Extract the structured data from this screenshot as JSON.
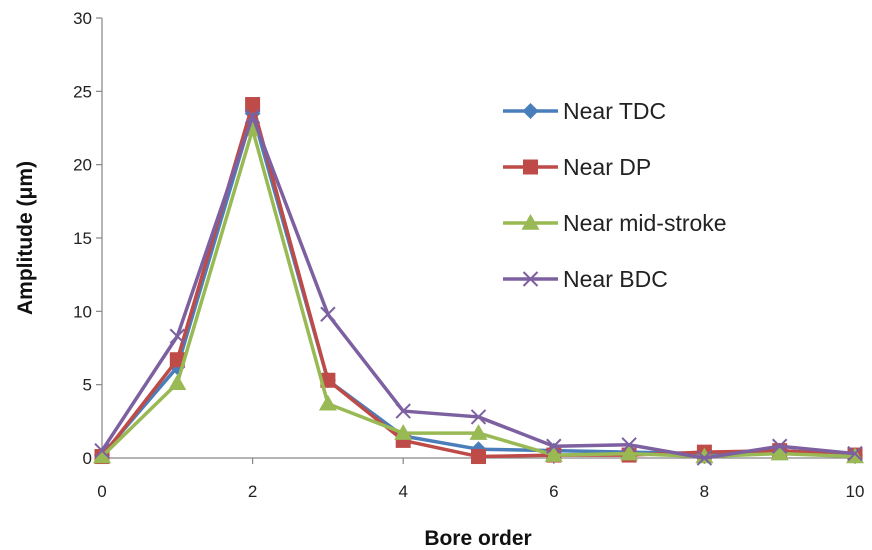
{
  "chart_data": {
    "type": "line",
    "xlabel": "Bore order",
    "ylabel": "Amplitude (μm)",
    "xlim": [
      0,
      10
    ],
    "ylim": [
      0,
      30
    ],
    "xticks": [
      0,
      2,
      4,
      6,
      8,
      10
    ],
    "yticks": [
      0,
      5,
      10,
      15,
      20,
      25,
      30
    ],
    "grid": false,
    "legend_position": "right",
    "x": [
      0,
      1,
      2,
      3,
      4,
      5,
      6,
      7,
      8,
      9,
      10
    ],
    "series": [
      {
        "name": "Near TDC",
        "color": "#4A7EBB",
        "marker": "diamond",
        "values": [
          0.2,
          6.2,
          23.5,
          5.3,
          1.5,
          0.6,
          0.5,
          0.4,
          0.3,
          0.5,
          0.2
        ]
      },
      {
        "name": "Near DP",
        "color": "#BE4B48",
        "marker": "square",
        "values": [
          0.1,
          6.7,
          24.1,
          5.3,
          1.2,
          0.1,
          0.2,
          0.2,
          0.4,
          0.5,
          0.2
        ]
      },
      {
        "name": "Near mid-stroke",
        "color": "#98B954",
        "marker": "triangle",
        "values": [
          0.1,
          5.1,
          22.4,
          3.7,
          1.7,
          1.7,
          0.2,
          0.3,
          0.1,
          0.3,
          0.1
        ]
      },
      {
        "name": "Near BDC",
        "color": "#7D60A0",
        "marker": "x",
        "values": [
          0.5,
          8.3,
          23.3,
          9.8,
          3.2,
          2.8,
          0.8,
          0.9,
          0.0,
          0.8,
          0.3
        ]
      }
    ]
  }
}
